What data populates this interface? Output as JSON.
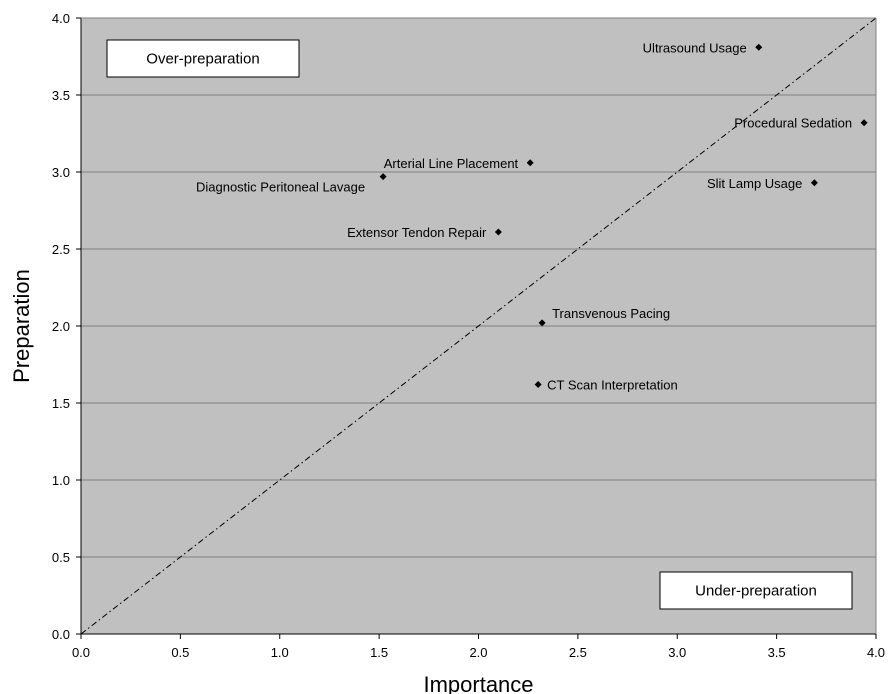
{
  "chart_data": {
    "type": "scatter",
    "xlabel": "Importance",
    "ylabel": "Preparation",
    "xlim": [
      0.0,
      4.0
    ],
    "ylim": [
      0.0,
      4.0
    ],
    "x_ticks": [
      "0.0",
      "0.5",
      "1.0",
      "1.5",
      "2.0",
      "2.5",
      "3.0",
      "3.5",
      "4.0"
    ],
    "y_ticks": [
      "0.0",
      "0.5",
      "1.0",
      "1.5",
      "2.0",
      "2.5",
      "3.0",
      "3.5",
      "4.0"
    ],
    "grid": "horizontal",
    "background_color": "#c0c0c0",
    "reference_line": {
      "from": [
        0,
        0
      ],
      "to": [
        4,
        4
      ],
      "style": "dash-dot"
    },
    "points": [
      {
        "label": "Ultrasound Usage",
        "x": 3.41,
        "y": 3.81,
        "label_side": "left"
      },
      {
        "label": "Procedural Sedation",
        "x": 3.94,
        "y": 3.32,
        "label_side": "left"
      },
      {
        "label": "Arterial Line Placement",
        "x": 2.26,
        "y": 3.06,
        "label_side": "left"
      },
      {
        "label": "Diagnostic Peritoneal Lavage",
        "x": 1.52,
        "y": 2.97,
        "label_side": "left-below"
      },
      {
        "label": "Slit Lamp Usage",
        "x": 3.69,
        "y": 2.93,
        "label_side": "left"
      },
      {
        "label": "Extensor Tendon Repair",
        "x": 2.1,
        "y": 2.61,
        "label_side": "left"
      },
      {
        "label": "Transvenous Pacing",
        "x": 2.32,
        "y": 2.02,
        "label_side": "right-above"
      },
      {
        "label": "CT Scan Interpretation",
        "x": 2.3,
        "y": 1.62,
        "label_side": "right"
      }
    ],
    "annotations": [
      {
        "text": "Over-preparation",
        "position": "top-left"
      },
      {
        "text": "Under-preparation",
        "position": "bottom-right"
      }
    ]
  }
}
